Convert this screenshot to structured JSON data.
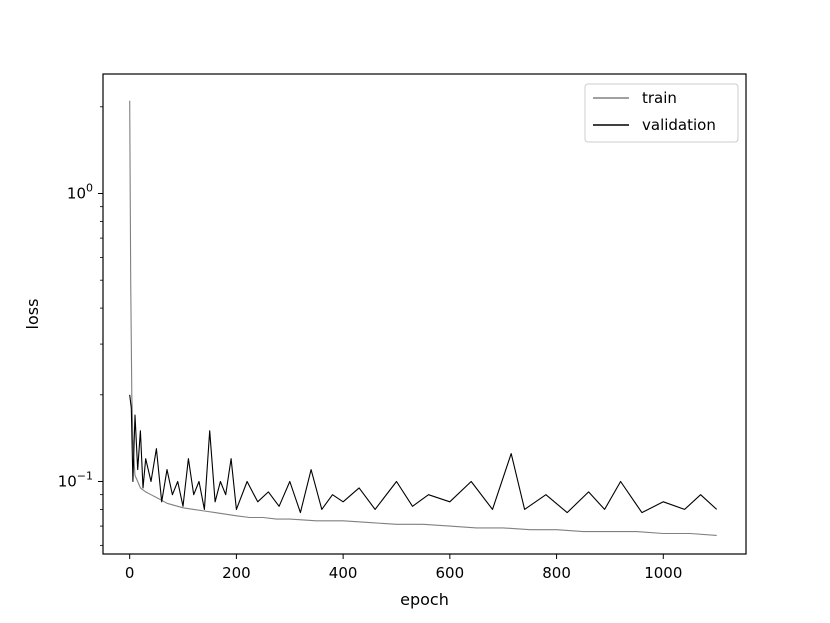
{
  "chart_data": {
    "type": "line",
    "title": "",
    "xlabel": "epoch",
    "ylabel": "loss",
    "xlim": [
      -50,
      1155
    ],
    "ylim": [
      0.056,
      2.6
    ],
    "yscale": "log",
    "grid": false,
    "legend_position": "top-right",
    "x_ticks": [
      {
        "value": 0,
        "label": "0"
      },
      {
        "value": 200,
        "label": "200"
      },
      {
        "value": 400,
        "label": "400"
      },
      {
        "value": 600,
        "label": "600"
      },
      {
        "value": 800,
        "label": "800"
      },
      {
        "value": 1000,
        "label": "1000"
      }
    ],
    "y_ticks": [
      {
        "value": 1.0,
        "base": "10",
        "exp": "0"
      },
      {
        "value": 0.1,
        "base": "10",
        "exp": "−1"
      }
    ],
    "series": [
      {
        "name": "train",
        "color": "#808080",
        "x": [
          0,
          2,
          4,
          6,
          8,
          10,
          15,
          20,
          30,
          40,
          50,
          60,
          70,
          80,
          90,
          100,
          120,
          140,
          160,
          180,
          200,
          225,
          250,
          275,
          300,
          350,
          400,
          450,
          500,
          550,
          600,
          650,
          700,
          750,
          800,
          850,
          900,
          950,
          1000,
          1050,
          1100
        ],
        "y": [
          2.1,
          0.5,
          0.2,
          0.14,
          0.12,
          0.105,
          0.1,
          0.095,
          0.092,
          0.09,
          0.088,
          0.086,
          0.084,
          0.083,
          0.082,
          0.081,
          0.08,
          0.079,
          0.078,
          0.077,
          0.076,
          0.075,
          0.075,
          0.074,
          0.074,
          0.073,
          0.073,
          0.072,
          0.071,
          0.071,
          0.07,
          0.069,
          0.069,
          0.068,
          0.068,
          0.067,
          0.067,
          0.067,
          0.066,
          0.066,
          0.065
        ]
      },
      {
        "name": "validation",
        "color": "#000000",
        "x": [
          0,
          3,
          6,
          10,
          15,
          20,
          25,
          30,
          40,
          50,
          60,
          70,
          80,
          90,
          100,
          110,
          120,
          130,
          140,
          150,
          160,
          170,
          180,
          190,
          200,
          220,
          240,
          260,
          280,
          300,
          320,
          340,
          360,
          380,
          400,
          430,
          460,
          500,
          530,
          560,
          600,
          640,
          680,
          715,
          740,
          780,
          820,
          860,
          890,
          920,
          960,
          1000,
          1040,
          1070,
          1100
        ],
        "y": [
          0.2,
          0.18,
          0.1,
          0.17,
          0.11,
          0.15,
          0.095,
          0.12,
          0.1,
          0.13,
          0.085,
          0.11,
          0.09,
          0.1,
          0.082,
          0.12,
          0.09,
          0.1,
          0.08,
          0.15,
          0.085,
          0.1,
          0.09,
          0.12,
          0.08,
          0.1,
          0.085,
          0.092,
          0.082,
          0.1,
          0.078,
          0.11,
          0.08,
          0.09,
          0.085,
          0.095,
          0.08,
          0.1,
          0.082,
          0.09,
          0.085,
          0.1,
          0.08,
          0.125,
          0.08,
          0.09,
          0.078,
          0.092,
          0.08,
          0.1,
          0.078,
          0.085,
          0.08,
          0.09,
          0.08
        ]
      }
    ]
  }
}
